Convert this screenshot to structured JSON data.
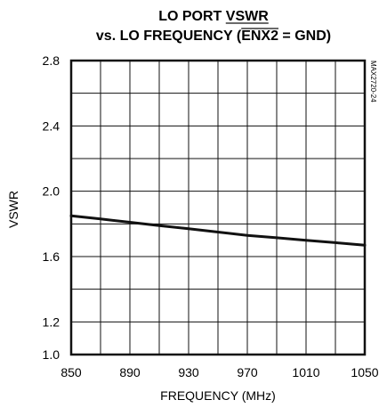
{
  "chart_data": {
    "type": "line",
    "title_line1": "LO PORT VSWR",
    "title_line2_prefix": "vs. LO FREQUENCY (",
    "title_line2_overline": "ENX2",
    "title_line2_suffix": " = GND)",
    "xlabel": "FREQUENCY (MHz)",
    "ylabel": "VSWR",
    "figure_code": "MAX2720-24",
    "xlim": [
      850,
      1050
    ],
    "ylim": [
      1.0,
      2.8
    ],
    "x_ticks": [
      "850",
      "890",
      "930",
      "970",
      "1010",
      "1050"
    ],
    "y_ticks": [
      "1.0",
      "1.2",
      "1.6",
      "2.0",
      "2.4",
      "2.8"
    ],
    "x_grid_step": 20,
    "y_grid_step": 0.2,
    "grid": true,
    "series": [
      {
        "x": [
          850,
          870,
          890,
          910,
          930,
          950,
          970,
          990,
          1010,
          1030,
          1050
        ],
        "y": [
          1.85,
          1.83,
          1.81,
          1.79,
          1.77,
          1.75,
          1.73,
          1.715,
          1.7,
          1.685,
          1.67
        ]
      }
    ]
  }
}
